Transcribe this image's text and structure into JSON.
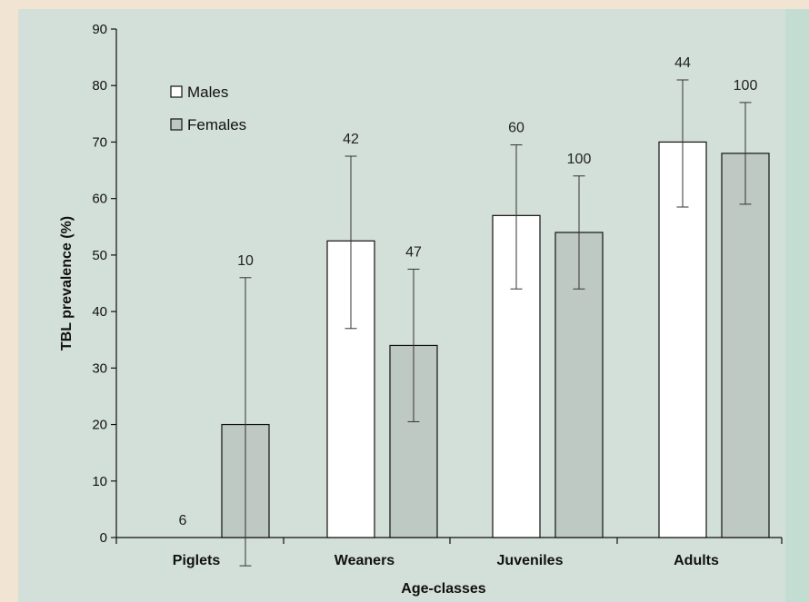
{
  "colors": {
    "page_background": "#f2e4d3",
    "plot_background": "#d3dfd9",
    "side_strip": "#c3ddd3",
    "males_fill": "#ffffff",
    "females_fill": "#bfc9c4",
    "stroke": "#111111"
  },
  "chart_data": {
    "type": "bar",
    "xlabel": "Age-classes",
    "ylabel": "TBL prevalence (%)",
    "ylim": [
      0,
      90
    ],
    "yticks": [
      0,
      10,
      20,
      30,
      40,
      50,
      60,
      70,
      80,
      90
    ],
    "grid": false,
    "legend_position": "top-left",
    "categories": [
      "Piglets",
      "Weaners",
      "Juveniles",
      "Adults"
    ],
    "series": [
      {
        "name": "Males",
        "values": [
          0,
          52.5,
          57,
          70
        ],
        "error_low": [
          null,
          37,
          44,
          58.5
        ],
        "error_high": [
          null,
          67.5,
          69.5,
          81
        ],
        "sample_sizes": [
          "6",
          "42",
          "60",
          "44"
        ]
      },
      {
        "name": "Females",
        "values": [
          20,
          34,
          54,
          68
        ],
        "error_low": [
          -5,
          20.5,
          44,
          59
        ],
        "error_high": [
          46,
          47.5,
          64,
          77
        ],
        "sample_sizes": [
          "10",
          "47",
          "100",
          "100"
        ]
      }
    ]
  }
}
